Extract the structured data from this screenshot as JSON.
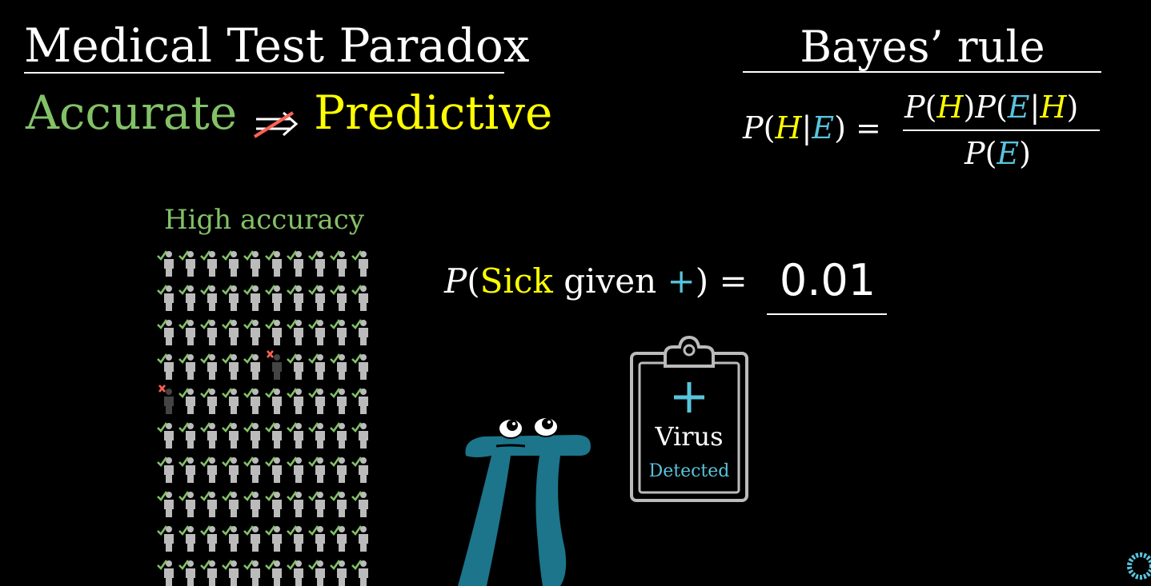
{
  "header": {
    "title": "Medical Test Paradox",
    "accurate": "Accurate",
    "predictive": "Predictive"
  },
  "bayes": {
    "title": "Bayes’ rule"
  },
  "grid": {
    "label": "High accuracy",
    "rows": 10,
    "cols": 10,
    "false_positive_cells": [
      [
        3,
        5
      ],
      [
        4,
        0
      ]
    ],
    "colors": {
      "check": "#83c167",
      "cross": "#fc6255",
      "person": "#bbbbbb",
      "person_fp": "#444444"
    }
  },
  "probability": {
    "p": "P",
    "open": "(",
    "sick": "Sick",
    "given": "given",
    "plus": "+",
    "close": ")",
    "equals": "=",
    "value": "0.01"
  },
  "clipboard": {
    "virus": "Virus",
    "detected": "Detected"
  },
  "colors": {
    "green": "#83c167",
    "yellow": "#ffff00",
    "blue": "#58c4dd",
    "red": "#fc6255",
    "pi": "#1c758a"
  }
}
